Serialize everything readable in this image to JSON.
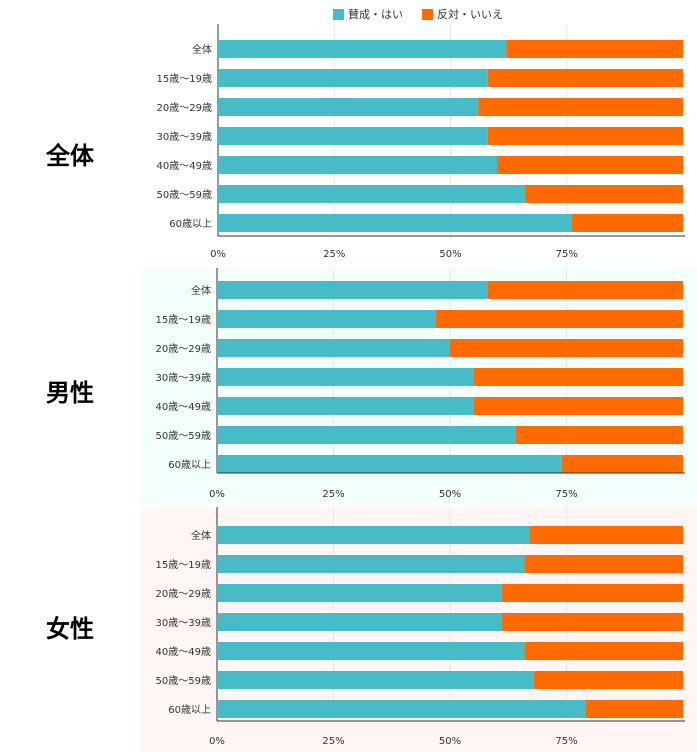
{
  "legend": [
    {
      "label": "賛成・はい",
      "color": "#48BCC6"
    },
    {
      "label": "反対・いいえ",
      "color": "#FF6B00"
    }
  ],
  "chart_data": [
    {
      "type": "bar",
      "orientation": "horizontal",
      "stacked": true,
      "percent": true,
      "title": "全体",
      "categories": [
        "全体",
        "15歳〜19歳",
        "20歳〜29歳",
        "30歳〜39歳",
        "40歳〜49歳",
        "50歳〜59歳",
        "60歳以上"
      ],
      "series": [
        {
          "name": "賛成・はい",
          "values": [
            62,
            58,
            56,
            58,
            60,
            66,
            76
          ]
        },
        {
          "name": "反対・いいえ",
          "values": [
            38,
            42,
            44,
            42,
            40,
            34,
            24
          ]
        }
      ],
      "xticks": [
        "0%",
        "25%",
        "50%",
        "75%"
      ],
      "xlim": [
        0,
        100
      ],
      "background": "#FFFFFF"
    },
    {
      "type": "bar",
      "orientation": "horizontal",
      "stacked": true,
      "percent": true,
      "title": "男性",
      "categories": [
        "全体",
        "15歳〜19歳",
        "20歳〜29歳",
        "30歳〜39歳",
        "40歳〜49歳",
        "50歳〜59歳",
        "60歳以上"
      ],
      "series": [
        {
          "name": "賛成・はい",
          "values": [
            58,
            47,
            50,
            55,
            55,
            64,
            74
          ]
        },
        {
          "name": "反対・いいえ",
          "values": [
            42,
            53,
            50,
            45,
            45,
            36,
            26
          ]
        }
      ],
      "xticks": [
        "0%",
        "25%",
        "50%",
        "75%"
      ],
      "xlim": [
        0,
        100
      ],
      "background": "#F3FFFA"
    },
    {
      "type": "bar",
      "orientation": "horizontal",
      "stacked": true,
      "percent": true,
      "title": "女性",
      "categories": [
        "全体",
        "15歳〜19歳",
        "20歳〜29歳",
        "30歳〜39歳",
        "40歳〜49歳",
        "50歳〜59歳",
        "60歳以上"
      ],
      "series": [
        {
          "name": "賛成・はい",
          "values": [
            67,
            66,
            61,
            61,
            66,
            68,
            79
          ]
        },
        {
          "name": "反対・いいえ",
          "values": [
            33,
            34,
            39,
            39,
            34,
            32,
            21
          ]
        }
      ],
      "xticks": [
        "0%",
        "25%",
        "50%",
        "75%"
      ],
      "xlim": [
        0,
        100
      ],
      "background": "#FFF6F5"
    }
  ]
}
